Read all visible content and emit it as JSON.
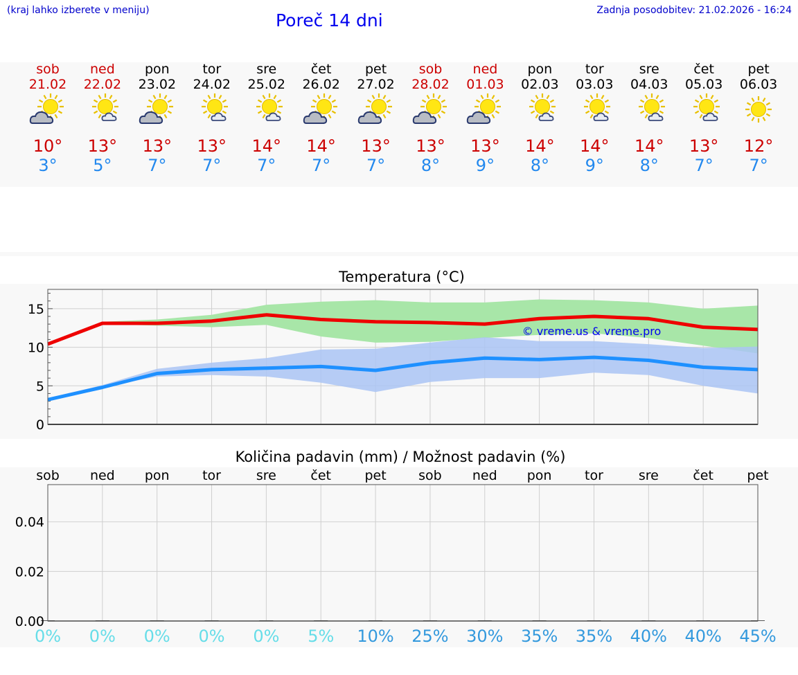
{
  "header": {
    "menu_hint": "(kraj lahko izberete v meniju)",
    "title": "Poreč 14 dni",
    "updated": "Zadnja posodobitev: 21.02.2026 - 16:24"
  },
  "days": [
    {
      "name": "sob",
      "date": "21.02",
      "weekend": true,
      "icon": "sun-cloud-icon",
      "max": "10°",
      "min": "3°"
    },
    {
      "name": "ned",
      "date": "22.02",
      "weekend": true,
      "icon": "sun-small-cloud-icon",
      "max": "13°",
      "min": "5°"
    },
    {
      "name": "pon",
      "date": "23.02",
      "weekend": false,
      "icon": "sun-cloud-icon",
      "max": "13°",
      "min": "7°"
    },
    {
      "name": "tor",
      "date": "24.02",
      "weekend": false,
      "icon": "sun-small-cloud-icon",
      "max": "13°",
      "min": "7°"
    },
    {
      "name": "sre",
      "date": "25.02",
      "weekend": false,
      "icon": "sun-small-cloud-icon",
      "max": "14°",
      "min": "7°"
    },
    {
      "name": "čet",
      "date": "26.02",
      "weekend": false,
      "icon": "sun-cloud-icon",
      "max": "14°",
      "min": "7°"
    },
    {
      "name": "pet",
      "date": "27.02",
      "weekend": false,
      "icon": "sun-cloud-icon",
      "max": "13°",
      "min": "7°"
    },
    {
      "name": "sob",
      "date": "28.02",
      "weekend": true,
      "icon": "sun-cloud-icon",
      "max": "13°",
      "min": "8°"
    },
    {
      "name": "ned",
      "date": "01.03",
      "weekend": true,
      "icon": "sun-cloud-icon",
      "max": "13°",
      "min": "9°"
    },
    {
      "name": "pon",
      "date": "02.03",
      "weekend": false,
      "icon": "sun-small-cloud-icon",
      "max": "14°",
      "min": "8°"
    },
    {
      "name": "tor",
      "date": "03.03",
      "weekend": false,
      "icon": "sun-small-cloud-icon",
      "max": "14°",
      "min": "9°"
    },
    {
      "name": "sre",
      "date": "04.03",
      "weekend": false,
      "icon": "sun-small-cloud-icon",
      "max": "14°",
      "min": "8°"
    },
    {
      "name": "čet",
      "date": "05.03",
      "weekend": false,
      "icon": "sun-small-cloud-icon",
      "max": "13°",
      "min": "7°"
    },
    {
      "name": "pet",
      "date": "06.03",
      "weekend": false,
      "icon": "sun-icon",
      "max": "12°",
      "min": "7°"
    }
  ],
  "colors": {
    "max_line": "#ee0000",
    "min_line": "#1e90ff",
    "max_band": "#a8e6a8",
    "min_band": "#aac4f4",
    "weekend_text": "#cc0000",
    "pct_light": "#66dde8",
    "pct_dark": "#3399dd"
  },
  "chart_data": [
    {
      "type": "line",
      "title": "Temperatura (°C)",
      "ylim": [
        0,
        17.5
      ],
      "yticks": [
        0,
        5,
        10,
        15
      ],
      "x": [
        0,
        1,
        2,
        3,
        4,
        5,
        6,
        7,
        8,
        9,
        10,
        11,
        12,
        13
      ],
      "watermark": "© vreme.us & vreme.pro",
      "series": [
        {
          "name": "max",
          "values": [
            10.4,
            13.1,
            13.1,
            13.4,
            14.2,
            13.6,
            13.3,
            13.2,
            13.0,
            13.7,
            14.0,
            13.7,
            12.6,
            12.3
          ]
        },
        {
          "name": "min",
          "values": [
            3.2,
            4.8,
            6.6,
            7.1,
            7.3,
            7.5,
            7.0,
            8.0,
            8.6,
            8.4,
            8.7,
            8.3,
            7.4,
            7.1
          ]
        }
      ],
      "bands": [
        {
          "name": "max-range",
          "low": [
            10.4,
            13.0,
            12.8,
            12.6,
            12.9,
            11.4,
            10.6,
            10.7,
            11.2,
            11.6,
            11.8,
            11.2,
            10.2,
            9.2
          ],
          "high": [
            10.4,
            13.3,
            13.6,
            14.2,
            15.5,
            15.9,
            16.1,
            15.8,
            15.8,
            16.2,
            16.1,
            15.8,
            15.0,
            15.4
          ]
        },
        {
          "name": "min-range",
          "low": [
            3.1,
            4.8,
            6.2,
            6.4,
            6.2,
            5.4,
            4.2,
            5.5,
            6.0,
            6.0,
            6.7,
            6.4,
            5.0,
            4.0
          ],
          "high": [
            3.4,
            5.1,
            7.2,
            8.0,
            8.6,
            9.7,
            9.8,
            10.6,
            11.3,
            10.8,
            10.8,
            10.4,
            9.9,
            10.1
          ]
        }
      ]
    },
    {
      "type": "bar",
      "title": "Količina padavin (mm) / Možnost padavin (%)",
      "categories": [
        "sob",
        "ned",
        "pon",
        "tor",
        "sre",
        "čet",
        "pet",
        "sob",
        "ned",
        "pon",
        "tor",
        "sre",
        "čet",
        "pet"
      ],
      "ylim": [
        0,
        0.055
      ],
      "yticks": [
        "0.00",
        "0.02",
        "0.04"
      ],
      "values": [
        0,
        0,
        0,
        0,
        0,
        0,
        0,
        0,
        0,
        0,
        0,
        0,
        0,
        0
      ],
      "chance": [
        "0%",
        "0%",
        "0%",
        "0%",
        "0%",
        "5%",
        "10%",
        "25%",
        "30%",
        "35%",
        "35%",
        "40%",
        "40%",
        "45%"
      ]
    }
  ]
}
